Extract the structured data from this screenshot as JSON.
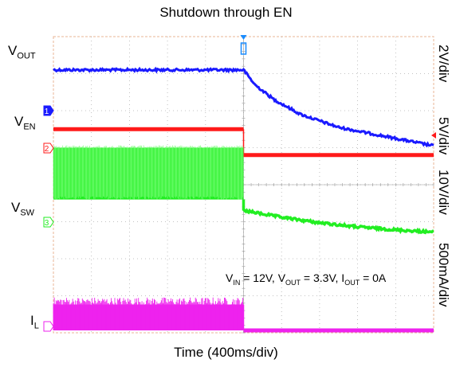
{
  "chart_data": {
    "type": "line",
    "title": "Shutdown through EN",
    "xlabel": "Time (400ms/div)",
    "x_divisions": 10,
    "y_divisions": 8,
    "grid": true,
    "trigger_division": 5,
    "series": [
      {
        "name": "VOUT",
        "label_main": "V",
        "label_sub": "OUT",
        "scale": "2V/div",
        "channel": "1",
        "color": "#1a1aff",
        "x_div": [
          0,
          5,
          5.3,
          5.8,
          6.5,
          7.5,
          8.5,
          10
        ],
        "y_div": [
          7.1,
          7.1,
          6.7,
          6.3,
          5.9,
          5.55,
          5.35,
          5.05
        ]
      },
      {
        "name": "VEN",
        "label_main": "V",
        "label_sub": "EN",
        "scale": "5V/div",
        "channel": "2",
        "color": "#ff1a1a",
        "x_div": [
          0,
          5,
          5.01,
          10
        ],
        "y_div": [
          5.5,
          5.5,
          4.8,
          4.8
        ]
      },
      {
        "name": "VSW",
        "label_main": "V",
        "label_sub": "SW",
        "scale": "10V/div",
        "channel": "3",
        "color": "#22ee22",
        "x_div": [
          0,
          5,
          5.01,
          6,
          7,
          8,
          9,
          10
        ],
        "y_div": [
          3.8,
          3.8,
          3.3,
          3.12,
          2.97,
          2.86,
          2.78,
          2.72
        ],
        "switching_band": [
          3.6,
          5.0
        ]
      },
      {
        "name": "IL",
        "label_main": "I",
        "label_sub": "L",
        "scale": "500mA/div",
        "channel": "",
        "color": "#ee22ee",
        "x_div": [
          0,
          5,
          5.01,
          10
        ],
        "y_div": [
          0.0,
          0.0,
          0.0,
          0.0
        ],
        "ripple_band": [
          0.0,
          0.85
        ]
      }
    ],
    "condition": {
      "vin_main": "V",
      "vin_sub": "IN",
      "vin_val": " = 12V, ",
      "vout_main": "V",
      "vout_sub": "OUT",
      "vout_val": " = 3.3V, ",
      "iout_main": "I",
      "iout_sub": "OUT",
      "iout_val": " = 0A"
    }
  }
}
